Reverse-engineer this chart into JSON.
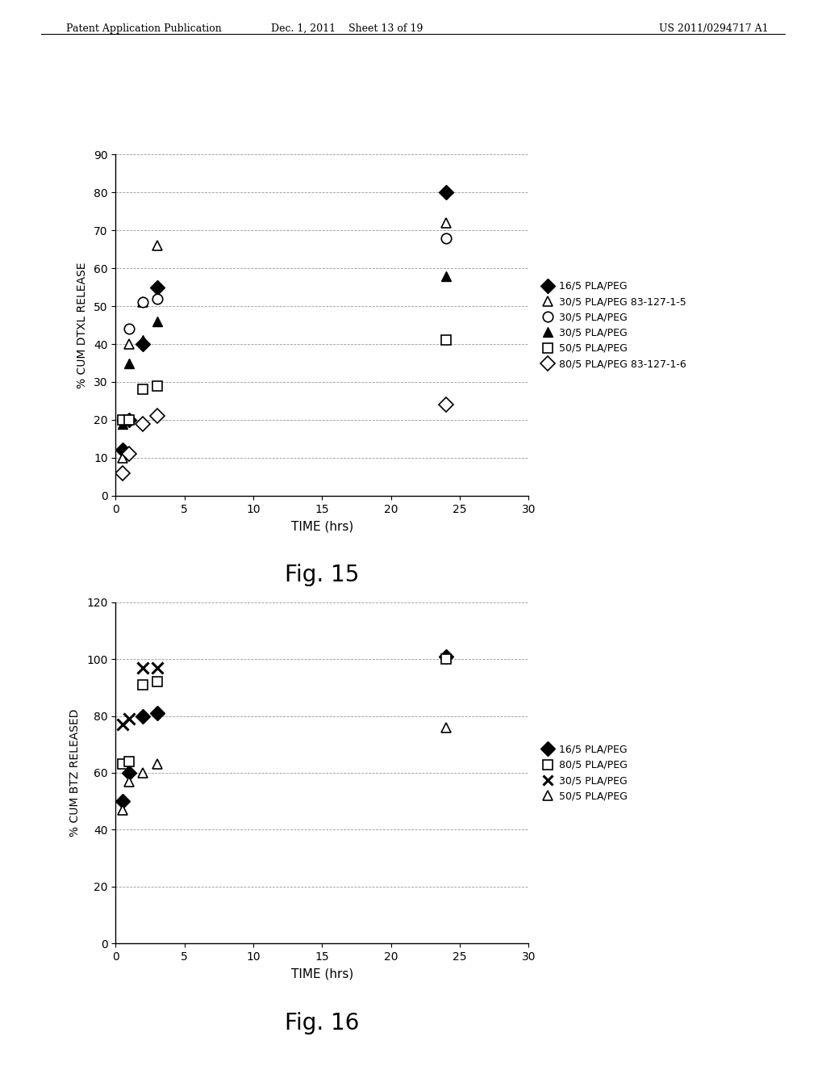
{
  "fig15": {
    "title": "Fig. 15",
    "xlabel": "TIME (hrs)",
    "ylabel": "% CUM DTXL RELEASE",
    "xlim": [
      0,
      30
    ],
    "ylim": [
      0,
      90
    ],
    "xticks": [
      0,
      5,
      10,
      15,
      20,
      25,
      30
    ],
    "yticks": [
      0,
      10,
      20,
      30,
      40,
      50,
      60,
      70,
      80,
      90
    ],
    "series": [
      {
        "label": "16/5 PLA/PEG",
        "marker": "D",
        "filled": true,
        "color": "black",
        "x": [
          0.5,
          1,
          2,
          3,
          24
        ],
        "y": [
          12,
          20,
          40,
          55,
          80
        ]
      },
      {
        "label": "30/5 PLA/PEG 83-127-1-5",
        "marker": "^",
        "filled": false,
        "color": "black",
        "x": [
          0.5,
          1,
          2,
          3,
          24
        ],
        "y": [
          10,
          40,
          51,
          66,
          72
        ]
      },
      {
        "label": "30/5 PLA/PEG",
        "marker": "o",
        "filled": false,
        "color": "black",
        "x": [
          0.5,
          1,
          2,
          3,
          24
        ],
        "y": [
          20,
          44,
          51,
          52,
          68
        ]
      },
      {
        "label": "30/5 PLA/PEG",
        "marker": "^",
        "filled": true,
        "color": "black",
        "x": [
          0.5,
          1,
          2,
          3,
          24
        ],
        "y": [
          19,
          35,
          41,
          46,
          58
        ]
      },
      {
        "label": "50/5 PLA/PEG",
        "marker": "s",
        "filled": false,
        "color": "black",
        "x": [
          0.5,
          1,
          2,
          3,
          24
        ],
        "y": [
          20,
          20,
          28,
          29,
          41
        ]
      },
      {
        "label": "80/5 PLA/PEG 83-127-1-6",
        "marker": "D",
        "filled": false,
        "color": "black",
        "x": [
          0.5,
          1,
          2,
          3,
          24
        ],
        "y": [
          6,
          11,
          19,
          21,
          24
        ]
      }
    ]
  },
  "fig16": {
    "title": "Fig. 16",
    "xlabel": "TIME (hrs)",
    "ylabel": "% CUM BTZ RELEASED",
    "xlim": [
      0,
      30
    ],
    "ylim": [
      0,
      120
    ],
    "xticks": [
      0,
      5,
      10,
      15,
      20,
      25,
      30
    ],
    "yticks": [
      0,
      20,
      40,
      60,
      80,
      100,
      120
    ],
    "series": [
      {
        "label": "16/5 PLA/PEG",
        "marker": "D",
        "filled": true,
        "color": "black",
        "x": [
          0.5,
          1,
          2,
          3,
          24
        ],
        "y": [
          50,
          60,
          80,
          81,
          101
        ]
      },
      {
        "label": "80/5 PLA/PEG",
        "marker": "s",
        "filled": false,
        "color": "black",
        "x": [
          0.5,
          1,
          2,
          3,
          24
        ],
        "y": [
          63,
          64,
          91,
          92,
          100
        ]
      },
      {
        "label": "30/5 PLA/PEG",
        "marker": "x",
        "filled": false,
        "color": "black",
        "x": [
          0.5,
          1,
          2,
          3
        ],
        "y": [
          77,
          79,
          97,
          97
        ]
      },
      {
        "label": "50/5 PLA/PEG",
        "marker": "^",
        "filled": false,
        "color": "black",
        "x": [
          0.5,
          1,
          2,
          3,
          24
        ],
        "y": [
          47,
          57,
          60,
          63,
          76
        ]
      }
    ]
  },
  "header_left": "Patent Application Publication",
  "header_center": "Dec. 1, 2011    Sheet 13 of 19",
  "header_right": "US 2011/0294717 A1",
  "background_color": "#ffffff",
  "text_color": "#000000"
}
